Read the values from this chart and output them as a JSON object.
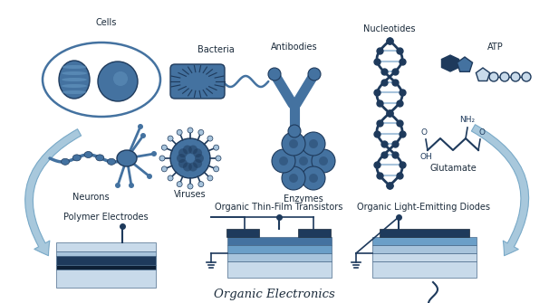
{
  "bg_color": "#ffffff",
  "main_blue": "#2a5f8f",
  "light_blue": "#6b9fc8",
  "dark_blue": "#1e3a5c",
  "mid_blue": "#4472a0",
  "very_light_blue": "#c8daea",
  "pale_blue": "#a8c4dc",
  "arrow_blue": "#7aaac8",
  "arrow_fill": "#a8c8dc",
  "title_bottom": "Organic Electronics",
  "label_cells": "Cells",
  "label_neurons": "Neurons",
  "label_bacteria": "Bacteria",
  "label_viruses": "Viruses",
  "label_antibodies": "Antibodies",
  "label_enzymes": "Enzymes",
  "label_nucleotides": "Nucleotides",
  "label_atp": "ATP",
  "label_glutamate": "Glutamate",
  "label_polymer": "Polymer Electrodes",
  "label_otft": "Organic Thin-Film Transistors",
  "label_oled": "Organic Light-Emitting Diodes",
  "figsize": [
    6.06,
    3.35
  ],
  "dpi": 100
}
